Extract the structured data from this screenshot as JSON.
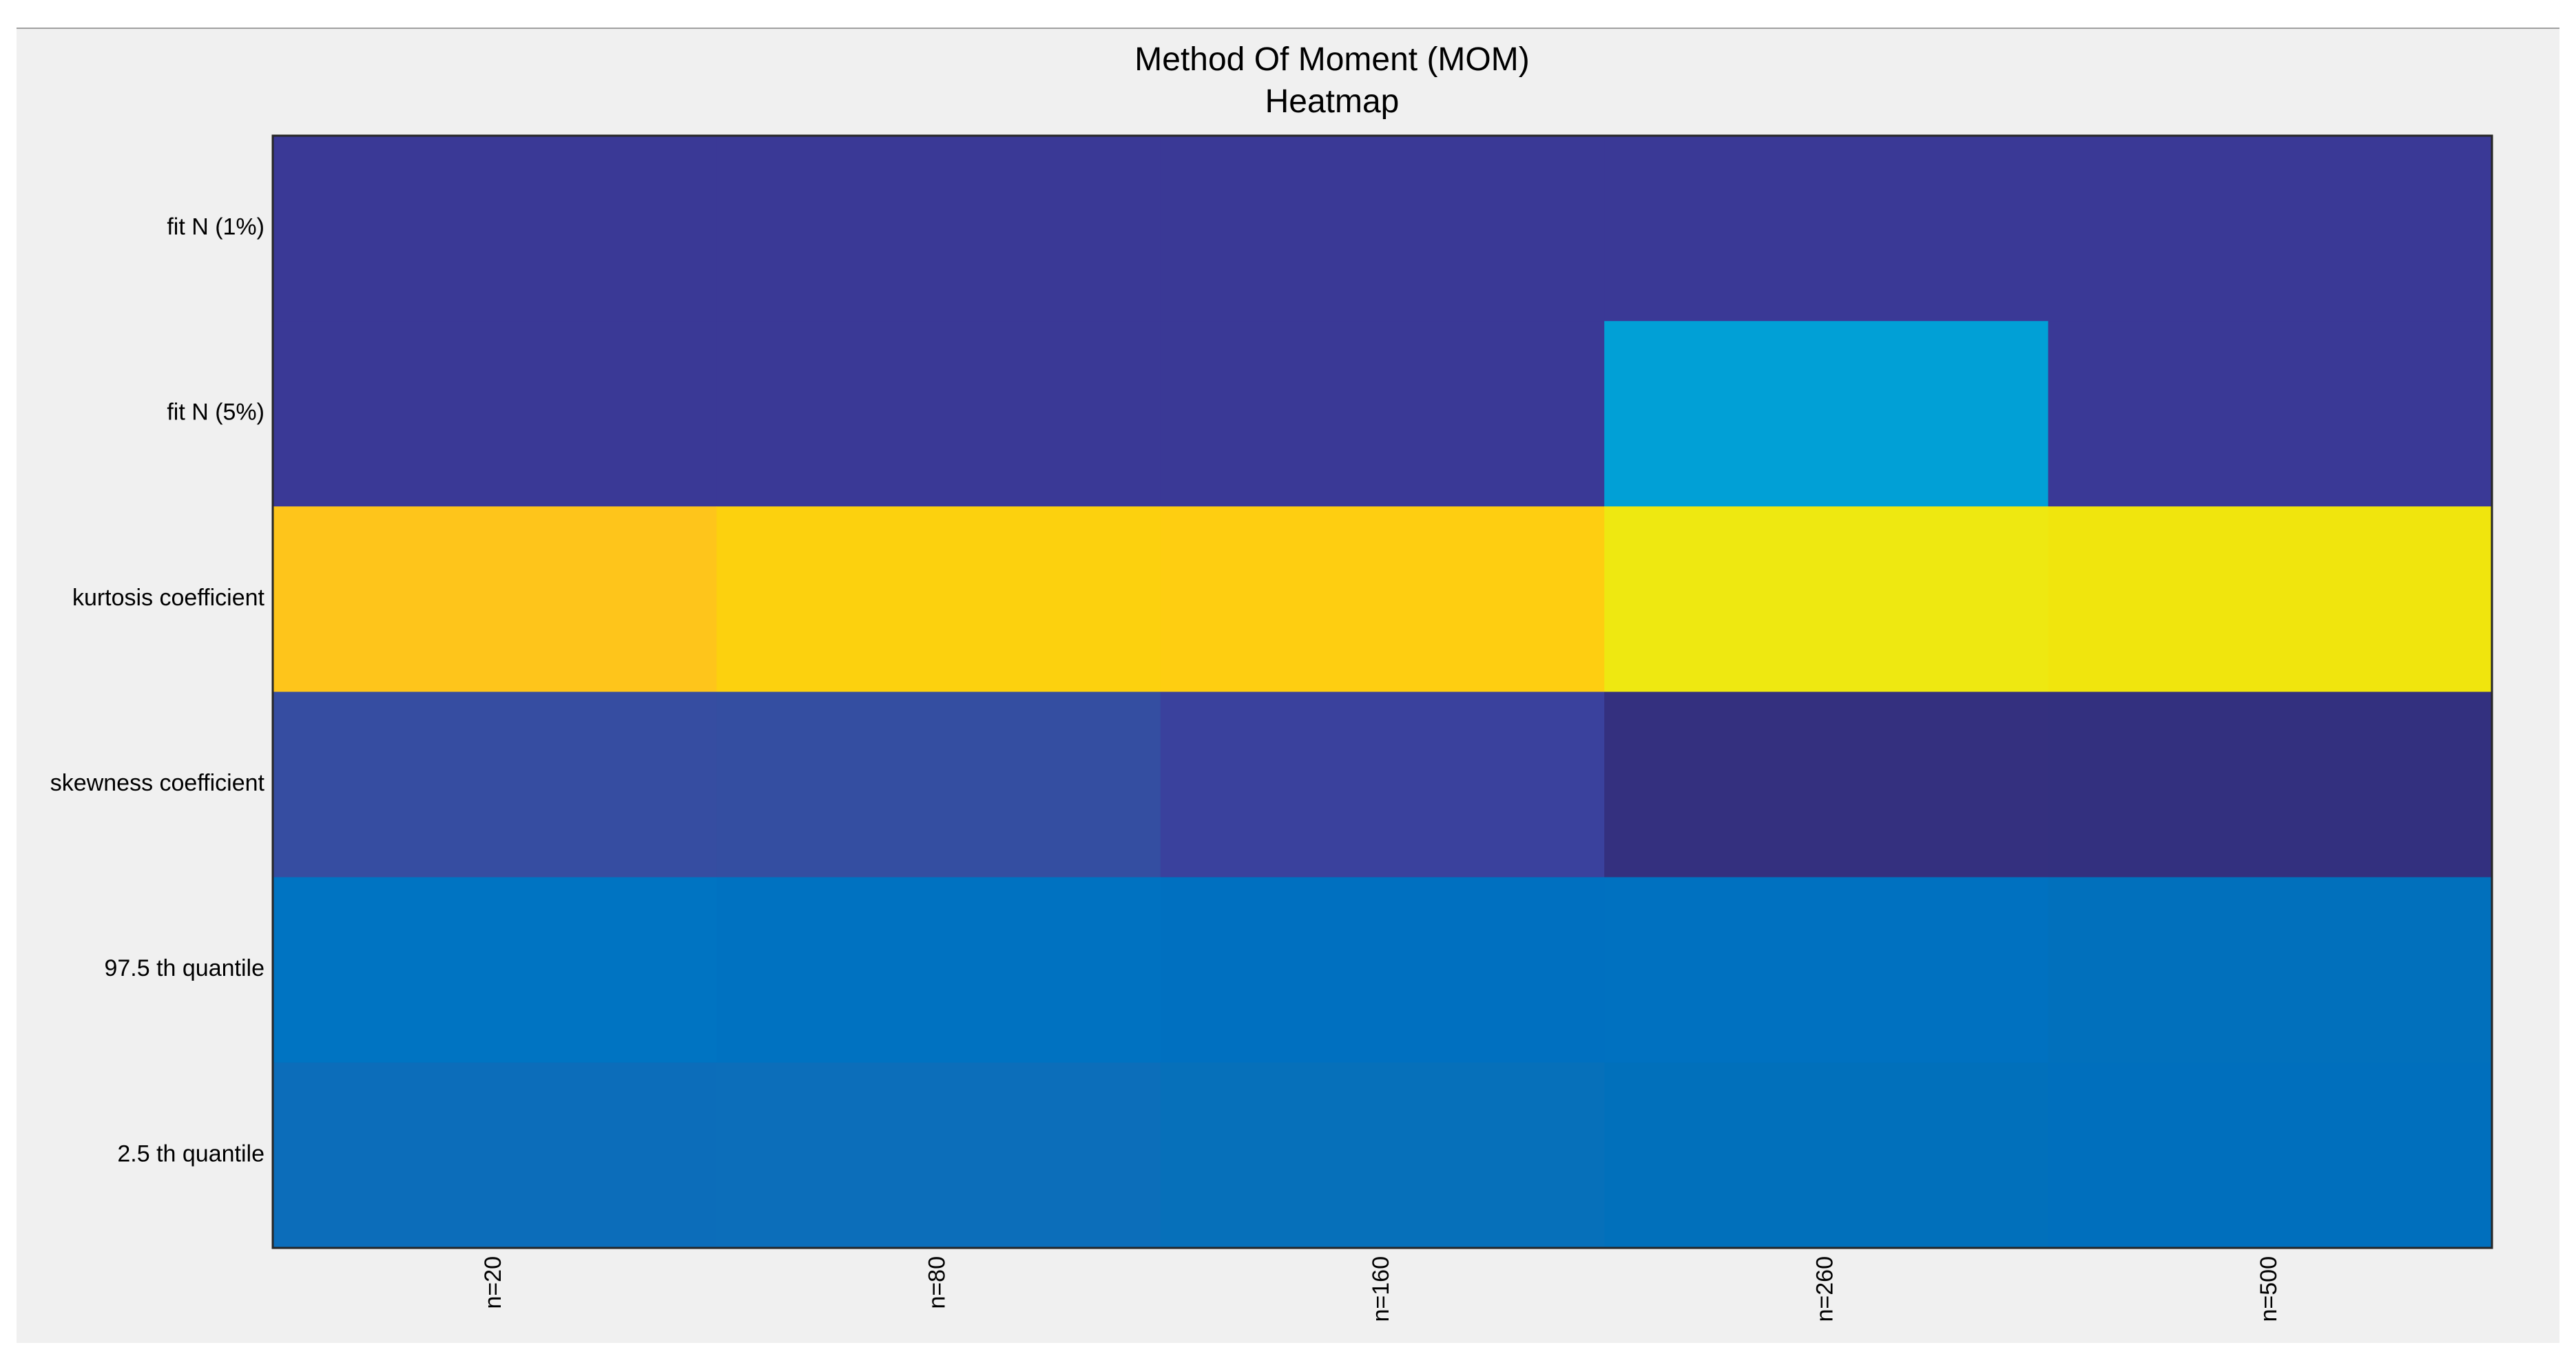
{
  "chart_data": {
    "type": "heatmap",
    "title": "Method Of Moment (MOM)",
    "subtitle": "Heatmap",
    "xlabel": "",
    "ylabel": "",
    "x_categories": [
      "n=20",
      "n=80",
      "n=160",
      "n=260",
      "n=500"
    ],
    "y_categories": [
      "fit N (1%)",
      "fit N (5%)",
      "kurtosis coefficient",
      "skewness coefficient",
      "97.5 th quantile",
      "2.5 th quantile"
    ],
    "colormap": "parula",
    "colorbar": false,
    "grid": false,
    "values": [
      [
        0.04,
        0.04,
        0.04,
        0.04,
        0.04
      ],
      [
        0.04,
        0.04,
        0.04,
        0.5,
        0.04
      ],
      [
        0.845,
        0.86,
        0.855,
        0.915,
        0.915
      ],
      [
        0.095,
        0.095,
        0.065,
        0.02,
        0.02
      ],
      [
        0.35,
        0.345,
        0.34,
        0.335,
        0.33
      ],
      [
        0.3,
        0.305,
        0.325,
        0.33,
        0.33
      ]
    ],
    "colors": [
      [
        "#3a3996",
        "#3a3996",
        "#3a3996",
        "#3a3996",
        "#3a3996"
      ],
      [
        "#3a3996",
        "#3a3996",
        "#3a3996",
        "#01a0d6",
        "#3a3996"
      ],
      [
        "#fec51b",
        "#fcd10e",
        "#fece11",
        "#eee811",
        "#f0e50d"
      ],
      [
        "#364da1",
        "#344ea1",
        "#3a419d",
        "#34307f",
        "#33307f"
      ],
      [
        "#0074c2",
        "#0072c1",
        "#0070c0",
        "#0071c0",
        "#0170bc"
      ],
      [
        "#0c6dba",
        "#0c6eba",
        "#0670ba",
        "#0170bb",
        "#006fbd"
      ]
    ]
  }
}
